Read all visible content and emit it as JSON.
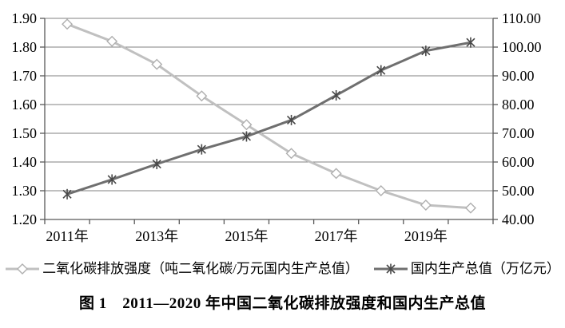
{
  "chart_data": {
    "type": "line",
    "x": [
      "2011",
      "2012",
      "2013",
      "2014",
      "2015",
      "2016",
      "2017",
      "2018",
      "2019",
      "2020"
    ],
    "x_tick_labels": [
      "2011年",
      "2013年",
      "2015年",
      "2017年",
      "2019年"
    ],
    "x_tick_positions": [
      0,
      2,
      4,
      6,
      8
    ],
    "left_axis": {
      "min": 1.2,
      "max": 1.9,
      "step": 0.1,
      "tick_labels": [
        "1.20",
        "1.30",
        "1.40",
        "1.50",
        "1.60",
        "1.70",
        "1.80",
        "1.90"
      ]
    },
    "right_axis": {
      "min": 40,
      "max": 110,
      "step": 10,
      "tick_labels": [
        "40.00",
        "50.00",
        "60.00",
        "70.00",
        "80.00",
        "90.00",
        "100.00",
        "110.00"
      ]
    },
    "grid": true,
    "legend_position": "bottom",
    "series": [
      {
        "name": "二氧化碳排放强度（吨二氧化碳/万元国内生产总值）",
        "axis": "left",
        "marker": "diamond",
        "line_color": "#c0c0c0",
        "marker_color": "#afafaf",
        "values": [
          1.88,
          1.82,
          1.74,
          1.63,
          1.53,
          1.43,
          1.36,
          1.3,
          1.25,
          1.24
        ]
      },
      {
        "name": "国内生产总值（万亿元）",
        "axis": "right",
        "marker": "star",
        "line_color": "#6f6f6f",
        "marker_color": "#484848",
        "values": [
          48.8,
          53.9,
          59.3,
          64.4,
          68.9,
          74.6,
          83.2,
          91.9,
          98.7,
          101.6
        ]
      }
    ]
  },
  "colors": {
    "grid": "#808080",
    "axis": "#595959",
    "text": "#000000",
    "background": "#ffffff"
  },
  "caption": {
    "text": "图 1　2011—2020 年中国二氧化碳排放强度和国内生产总值"
  }
}
